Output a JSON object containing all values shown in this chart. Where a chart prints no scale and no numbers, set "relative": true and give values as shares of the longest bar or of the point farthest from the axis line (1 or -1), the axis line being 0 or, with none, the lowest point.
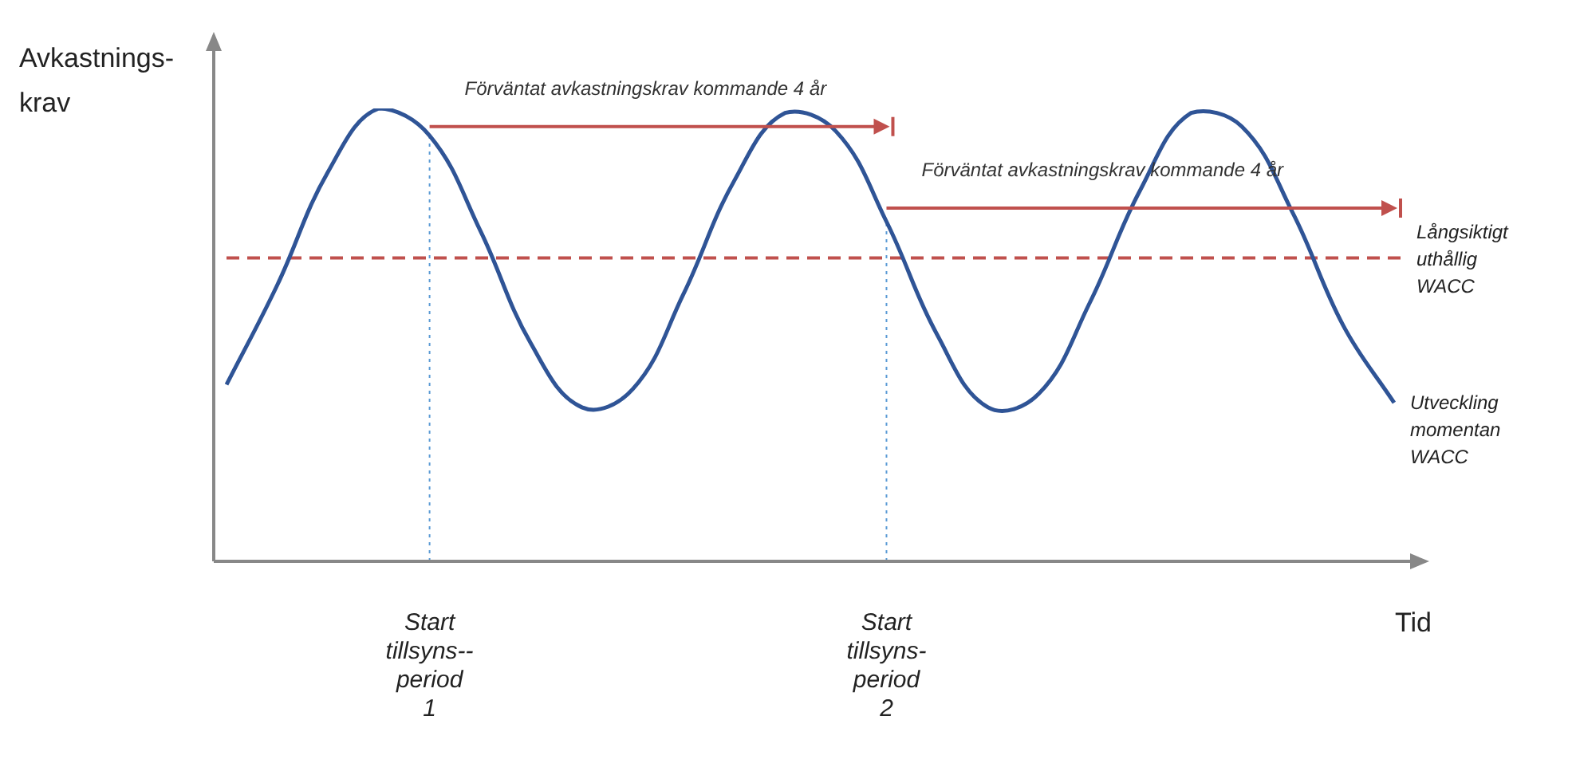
{
  "chart_data": {
    "type": "line",
    "relative": true,
    "ylabel": "Avkastnings-krav",
    "xlabel": "Tid",
    "categories": [
      null,
      null,
      null,
      null,
      "Start tillsyns-- period 1",
      null,
      null,
      null,
      null,
      null,
      null,
      null,
      null,
      "Start tillsyns- period 2",
      null,
      null,
      null,
      null,
      null,
      null,
      null,
      null,
      null,
      null
    ],
    "series": [
      {
        "name": "Utveckling momentan WACC",
        "color": "#2f5496",
        "values": [
          0.39,
          0.61,
          0.86,
          1.0,
          0.94,
          0.73,
          0.48,
          0.34,
          0.38,
          0.59,
          0.84,
          0.99,
          0.95,
          0.75,
          0.5,
          0.34,
          0.37,
          0.57,
          0.82,
          0.99,
          0.96,
          0.77,
          0.52,
          0.35
        ]
      }
    ],
    "ref_lines": [
      {
        "axis": "y",
        "value": 0.67,
        "label": "Långsiktigt uthållig WACC",
        "color": "#c0504d",
        "line_style": "dashed"
      },
      {
        "axis": "x",
        "value": "Start tillsyns-- period 1",
        "color": "#5b9bd5",
        "line_style": "dotted"
      },
      {
        "axis": "x",
        "value": "Start tillsyns- period 2",
        "color": "#5b9bd5",
        "line_style": "dotted"
      }
    ],
    "annotations": [
      "Förväntat avkastningskrav kommande 4 år",
      "Förväntat avkastningskrav kommande 4 år"
    ],
    "legend": false,
    "grid": false,
    "marker": "none",
    "line_style": "solid"
  }
}
